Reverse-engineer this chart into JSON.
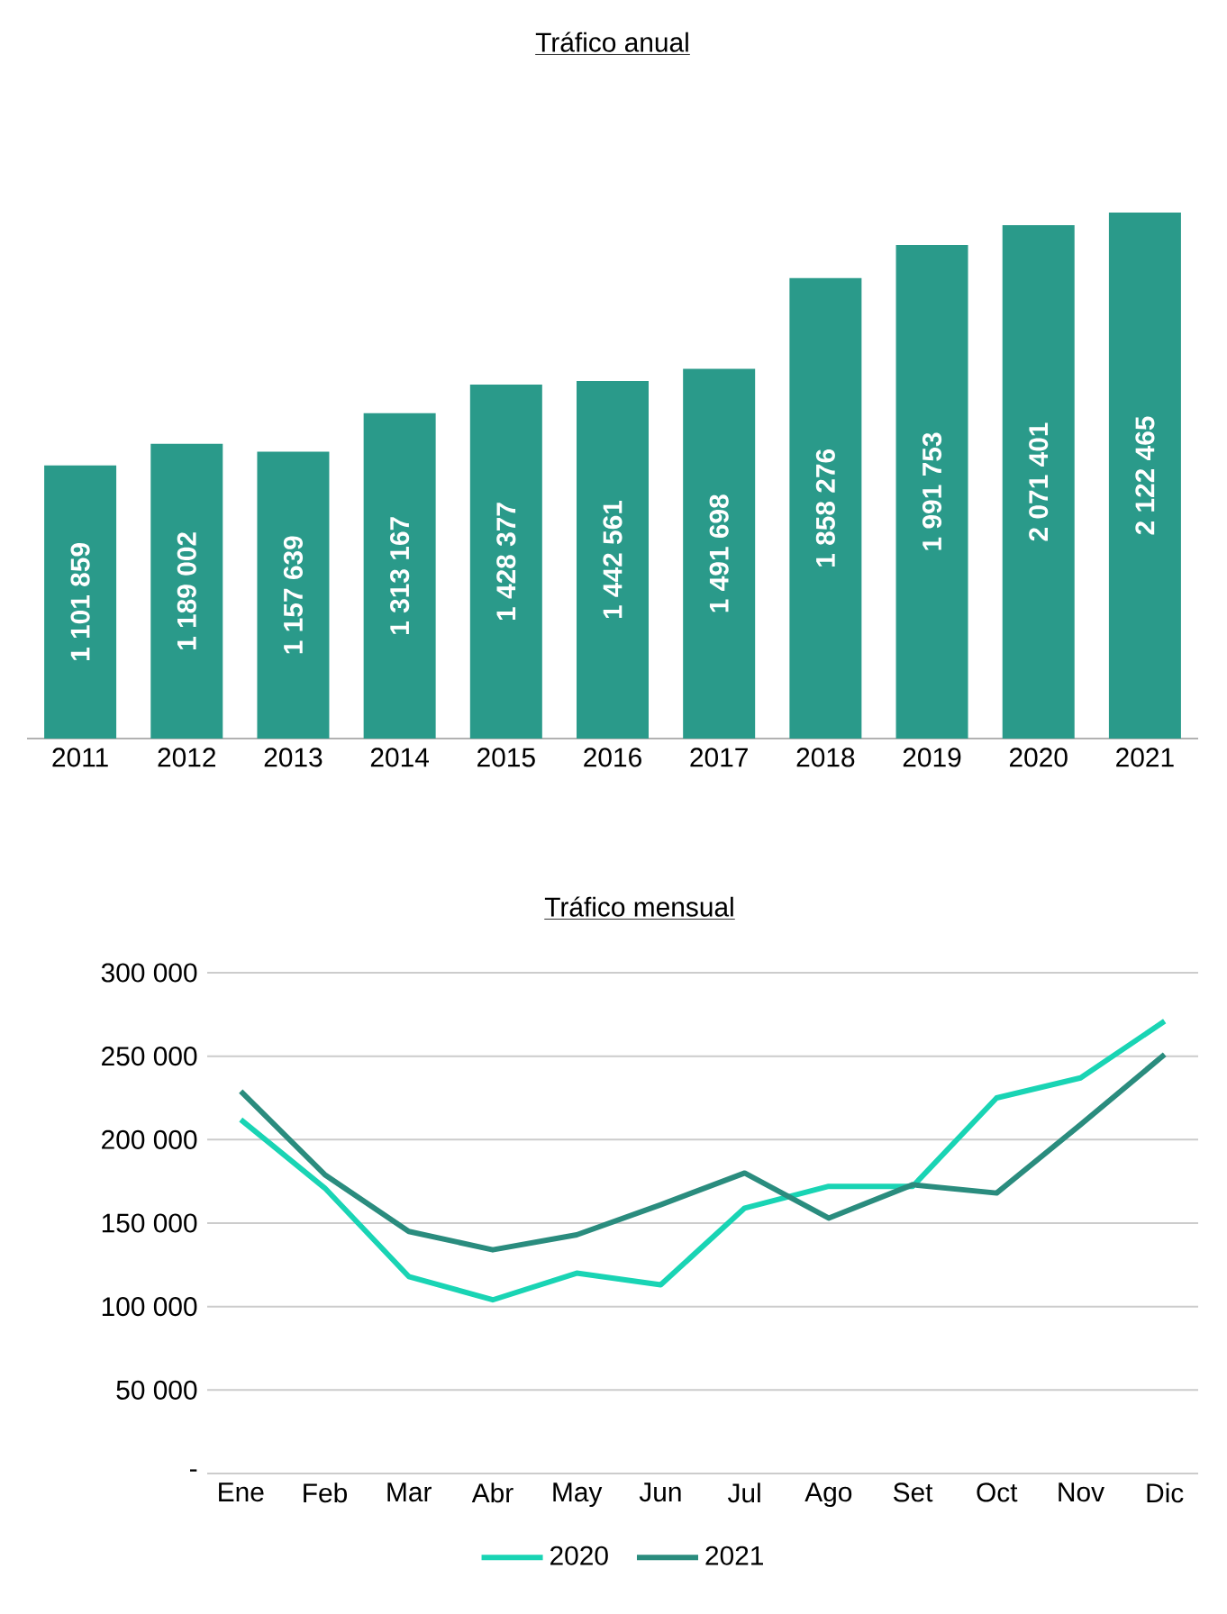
{
  "chart_data": [
    {
      "type": "bar",
      "title": "Tráfico anual",
      "categories": [
        "2011",
        "2012",
        "2013",
        "2014",
        "2015",
        "2016",
        "2017",
        "2018",
        "2019",
        "2020",
        "2021"
      ],
      "values": [
        1101859,
        1189002,
        1157639,
        1313167,
        1428377,
        1442561,
        1491698,
        1858276,
        1991753,
        2071401,
        2122465
      ],
      "value_labels": [
        "1 101 859",
        "1 189 002",
        "1 157 639",
        "1 313 167",
        "1 428 377",
        "1 442 561",
        "1 491 698",
        "1 858 276",
        "1 991 753",
        "2 071 401",
        "2 122 465"
      ],
      "color": "#2a9a8a",
      "grid": false,
      "legend": false
    },
    {
      "type": "line",
      "title": "Tráfico mensual",
      "categories": [
        "Ene",
        "Feb",
        "Mar",
        "Abr",
        "May",
        "Jun",
        "Jul",
        "Ago",
        "Set",
        "Oct",
        "Nov",
        "Dic"
      ],
      "series": [
        {
          "name": "2020",
          "color": "#19d4b4",
          "values": [
            212000,
            171000,
            118000,
            104000,
            120000,
            113000,
            159000,
            172000,
            172000,
            225000,
            237000,
            271000
          ]
        },
        {
          "name": "2021",
          "color": "#2a8c7e",
          "values": [
            229000,
            179000,
            145000,
            134000,
            143000,
            161000,
            180000,
            153000,
            173000,
            168000,
            209000,
            251000
          ]
        }
      ],
      "ylim": [
        0,
        300000
      ],
      "yticks": [
        {
          "value": 0,
          "label": "-"
        },
        {
          "value": 50000,
          "label": "50 000"
        },
        {
          "value": 100000,
          "label": "100 000"
        },
        {
          "value": 150000,
          "label": "150 000"
        },
        {
          "value": 200000,
          "label": "200 000"
        },
        {
          "value": 250000,
          "label": "250 000"
        },
        {
          "value": 300000,
          "label": "300 000"
        }
      ],
      "grid": "y",
      "legend": "bottom",
      "marker": "none",
      "line_style": "solid"
    }
  ]
}
